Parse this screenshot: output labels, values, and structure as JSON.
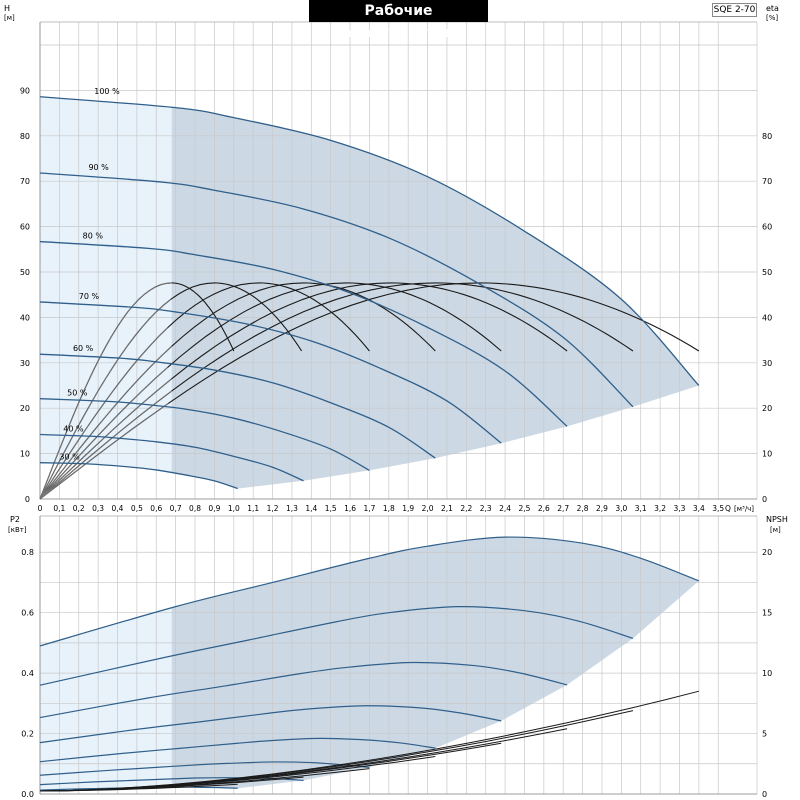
{
  "title": "Рабочие характеристики",
  "model": "SQE 2-70",
  "colors": {
    "band_dark": "#ccd9e5",
    "band_light": "#e8f2fb",
    "curve_blue": "#2f5f8a",
    "curve_black": "#1a1a1a",
    "grid": "#c8c8c8"
  },
  "chart_data": [
    {
      "type": "line",
      "name": "upper",
      "left_axis": {
        "label": "H",
        "unit": "[м]",
        "range": [
          0,
          100
        ],
        "ticks": [
          0,
          10,
          20,
          30,
          40,
          50,
          60,
          70,
          80,
          90
        ]
      },
      "right_axis": {
        "label": "eta",
        "unit": "[%]",
        "range": [
          0,
          100
        ],
        "ticks": [
          0,
          10,
          20,
          30,
          40,
          50,
          60,
          70,
          80
        ]
      },
      "x_axis": {
        "label": "Q",
        "unit": "[м³/ч]",
        "range": [
          0,
          3.7
        ],
        "ticks": [
          "0",
          "0,1",
          "0,2",
          "0,3",
          "0,4",
          "0,5",
          "0,6",
          "0,7",
          "0,8",
          "0,9",
          "1,0",
          "1,1",
          "1,2",
          "1,3",
          "1,4",
          "1,5",
          "1,6",
          "1,7",
          "1,8",
          "1,9",
          "2,0",
          "2,1",
          "2,2",
          "2,3",
          "2,4",
          "2,5",
          "2,6",
          "2,7",
          "2,8",
          "2,9",
          "3,0",
          "3,1",
          "3,2",
          "3,3",
          "3,4",
          "3,5"
        ]
      },
      "min_flow_line": 0.68,
      "head_curves": [
        {
          "speed": "100 %",
          "q_max": 3.4,
          "points": [
            [
              0,
              88.6
            ],
            [
              0.7,
              86.2
            ],
            [
              1.0,
              84.0
            ],
            [
              1.5,
              79.0
            ],
            [
              2.0,
              71.0
            ],
            [
              2.5,
              59.0
            ],
            [
              3.0,
              44.0
            ],
            [
              3.4,
              25.0
            ]
          ]
        },
        {
          "speed": "90 %",
          "q_max": 3.06,
          "points": [
            [
              0,
              71.8
            ],
            [
              0.63,
              69.8
            ],
            [
              0.9,
              68.0
            ],
            [
              1.35,
              64.0
            ],
            [
              1.8,
              57.5
            ],
            [
              2.25,
              47.8
            ],
            [
              2.7,
              35.6
            ],
            [
              3.06,
              20.3
            ]
          ]
        },
        {
          "speed": "80 %",
          "q_max": 2.72,
          "points": [
            [
              0,
              56.7
            ],
            [
              0.56,
              55.2
            ],
            [
              0.8,
              53.8
            ],
            [
              1.2,
              50.6
            ],
            [
              1.6,
              45.4
            ],
            [
              2.0,
              37.8
            ],
            [
              2.4,
              28.2
            ],
            [
              2.72,
              16.0
            ]
          ]
        },
        {
          "speed": "70 %",
          "q_max": 2.38,
          "points": [
            [
              0,
              43.4
            ],
            [
              0.49,
              42.2
            ],
            [
              0.7,
              41.2
            ],
            [
              1.05,
              38.7
            ],
            [
              1.4,
              34.8
            ],
            [
              1.75,
              28.9
            ],
            [
              2.1,
              21.6
            ],
            [
              2.38,
              12.3
            ]
          ]
        },
        {
          "speed": "60 %",
          "q_max": 2.04,
          "points": [
            [
              0,
              31.9
            ],
            [
              0.42,
              31.0
            ],
            [
              0.6,
              30.2
            ],
            [
              0.9,
              28.4
            ],
            [
              1.2,
              25.6
            ],
            [
              1.5,
              21.2
            ],
            [
              1.8,
              15.8
            ],
            [
              2.04,
              9.0
            ]
          ]
        },
        {
          "speed": "50 %",
          "q_max": 1.7,
          "points": [
            [
              0,
              22.1
            ],
            [
              0.35,
              21.5
            ],
            [
              0.5,
              21.0
            ],
            [
              0.75,
              19.8
            ],
            [
              1.0,
              17.8
            ],
            [
              1.25,
              14.8
            ],
            [
              1.5,
              11.0
            ],
            [
              1.7,
              6.3
            ]
          ]
        },
        {
          "speed": "40 %",
          "q_max": 1.36,
          "points": [
            [
              0,
              14.2
            ],
            [
              0.28,
              13.8
            ],
            [
              0.4,
              13.4
            ],
            [
              0.6,
              12.6
            ],
            [
              0.8,
              11.4
            ],
            [
              1.0,
              9.4
            ],
            [
              1.2,
              7.0
            ],
            [
              1.36,
              4.0
            ]
          ]
        },
        {
          "speed": "30 %",
          "q_max": 1.02,
          "points": [
            [
              0,
              8.0
            ],
            [
              0.21,
              7.8
            ],
            [
              0.3,
              7.6
            ],
            [
              0.45,
              7.1
            ],
            [
              0.6,
              6.4
            ],
            [
              0.75,
              5.3
            ],
            [
              0.9,
              4.0
            ],
            [
              1.02,
              2.3
            ]
          ]
        }
      ],
      "efficiency_curves": [
        {
          "q_peak": 0.68,
          "eta_peak": 47.6,
          "q_end": 1.0,
          "eta_end": 32.6
        },
        {
          "q_peak": 0.9,
          "eta_peak": 47.6,
          "q_end": 1.35,
          "eta_end": 32.6
        },
        {
          "q_peak": 1.13,
          "eta_peak": 47.6,
          "q_end": 1.7,
          "eta_end": 32.6
        },
        {
          "q_peak": 1.36,
          "eta_peak": 47.6,
          "q_end": 2.04,
          "eta_end": 32.6
        },
        {
          "q_peak": 1.58,
          "eta_peak": 47.6,
          "q_end": 2.38,
          "eta_end": 32.6
        },
        {
          "q_peak": 1.81,
          "eta_peak": 47.6,
          "q_end": 2.72,
          "eta_end": 32.6
        },
        {
          "q_peak": 2.04,
          "eta_peak": 47.6,
          "q_end": 3.06,
          "eta_end": 32.6
        },
        {
          "q_peak": 2.27,
          "eta_peak": 47.6,
          "q_end": 3.4,
          "eta_end": 32.6
        }
      ]
    },
    {
      "type": "line",
      "name": "lower",
      "left_axis": {
        "label": "P2",
        "unit": "[кВт]",
        "range": [
          0,
          0.9
        ],
        "ticks": [
          "0.0",
          "0.2",
          "0.4",
          "0.6",
          "0.8"
        ]
      },
      "right_axis": {
        "label": "NPSH",
        "unit": "[м]",
        "range": [
          0,
          22.5
        ],
        "ticks": [
          "0",
          "5",
          "10",
          "15",
          "20"
        ]
      },
      "x_axis": {
        "range": [
          0,
          3.7
        ]
      },
      "power_curves": [
        {
          "speed": "100 %",
          "points": [
            [
              0,
              0.49
            ],
            [
              0.7,
              0.62
            ],
            [
              1.2,
              0.7
            ],
            [
              1.7,
              0.78
            ],
            [
              2.0,
              0.82
            ],
            [
              2.4,
              0.85
            ],
            [
              2.8,
              0.83
            ],
            [
              3.1,
              0.78
            ],
            [
              3.4,
              0.705
            ]
          ]
        },
        {
          "speed": "90 %",
          "points": [
            [
              0,
              0.36
            ],
            [
              0.63,
              0.45
            ],
            [
              1.08,
              0.51
            ],
            [
              1.53,
              0.57
            ],
            [
              1.8,
              0.6
            ],
            [
              2.16,
              0.62
            ],
            [
              2.52,
              0.605
            ],
            [
              2.79,
              0.57
            ],
            [
              3.06,
              0.515
            ]
          ]
        },
        {
          "speed": "80 %",
          "points": [
            [
              0,
              0.253
            ],
            [
              0.56,
              0.318
            ],
            [
              0.96,
              0.358
            ],
            [
              1.36,
              0.4
            ],
            [
              1.6,
              0.42
            ],
            [
              1.92,
              0.435
            ],
            [
              2.24,
              0.425
            ],
            [
              2.48,
              0.4
            ],
            [
              2.72,
              0.361
            ]
          ]
        },
        {
          "speed": "70 %",
          "points": [
            [
              0,
              0.17
            ],
            [
              0.49,
              0.213
            ],
            [
              0.84,
              0.24
            ],
            [
              1.19,
              0.268
            ],
            [
              1.4,
              0.282
            ],
            [
              1.68,
              0.292
            ],
            [
              1.96,
              0.285
            ],
            [
              2.17,
              0.268
            ],
            [
              2.38,
              0.242
            ]
          ]
        },
        {
          "speed": "60 %",
          "points": [
            [
              0,
              0.107
            ],
            [
              0.42,
              0.134
            ],
            [
              0.72,
              0.151
            ],
            [
              1.02,
              0.168
            ],
            [
              1.2,
              0.177
            ],
            [
              1.44,
              0.184
            ],
            [
              1.68,
              0.179
            ],
            [
              1.86,
              0.169
            ],
            [
              2.04,
              0.152
            ]
          ]
        },
        {
          "speed": "50 %",
          "points": [
            [
              0,
              0.062
            ],
            [
              0.35,
              0.078
            ],
            [
              0.6,
              0.088
            ],
            [
              0.85,
              0.098
            ],
            [
              1.0,
              0.102
            ],
            [
              1.2,
              0.106
            ],
            [
              1.4,
              0.104
            ],
            [
              1.55,
              0.097
            ],
            [
              1.7,
              0.088
            ]
          ]
        },
        {
          "speed": "40 %",
          "points": [
            [
              0,
              0.031
            ],
            [
              0.28,
              0.04
            ],
            [
              0.48,
              0.045
            ],
            [
              0.68,
              0.05
            ],
            [
              0.8,
              0.053
            ],
            [
              0.96,
              0.054
            ],
            [
              1.12,
              0.053
            ],
            [
              1.24,
              0.05
            ],
            [
              1.36,
              0.045
            ]
          ]
        },
        {
          "speed": "30 %",
          "points": [
            [
              0,
              0.013
            ],
            [
              0.21,
              0.017
            ],
            [
              0.36,
              0.019
            ],
            [
              0.51,
              0.021
            ],
            [
              0.6,
              0.022
            ],
            [
              0.72,
              0.023
            ],
            [
              0.84,
              0.022
            ],
            [
              0.93,
              0.021
            ],
            [
              1.02,
              0.019
            ]
          ]
        }
      ],
      "npsh_curves": [
        {
          "q_max": 3.4,
          "npsh_max": 8.5
        },
        {
          "q_max": 3.06,
          "npsh_max": 6.9
        },
        {
          "q_max": 2.72,
          "npsh_max": 5.4
        },
        {
          "q_max": 2.38,
          "npsh_max": 4.2
        },
        {
          "q_max": 2.04,
          "npsh_max": 3.1
        },
        {
          "q_max": 1.7,
          "npsh_max": 2.1
        },
        {
          "q_max": 1.36,
          "npsh_max": 1.4
        },
        {
          "q_max": 1.02,
          "npsh_max": 0.8
        }
      ]
    }
  ]
}
